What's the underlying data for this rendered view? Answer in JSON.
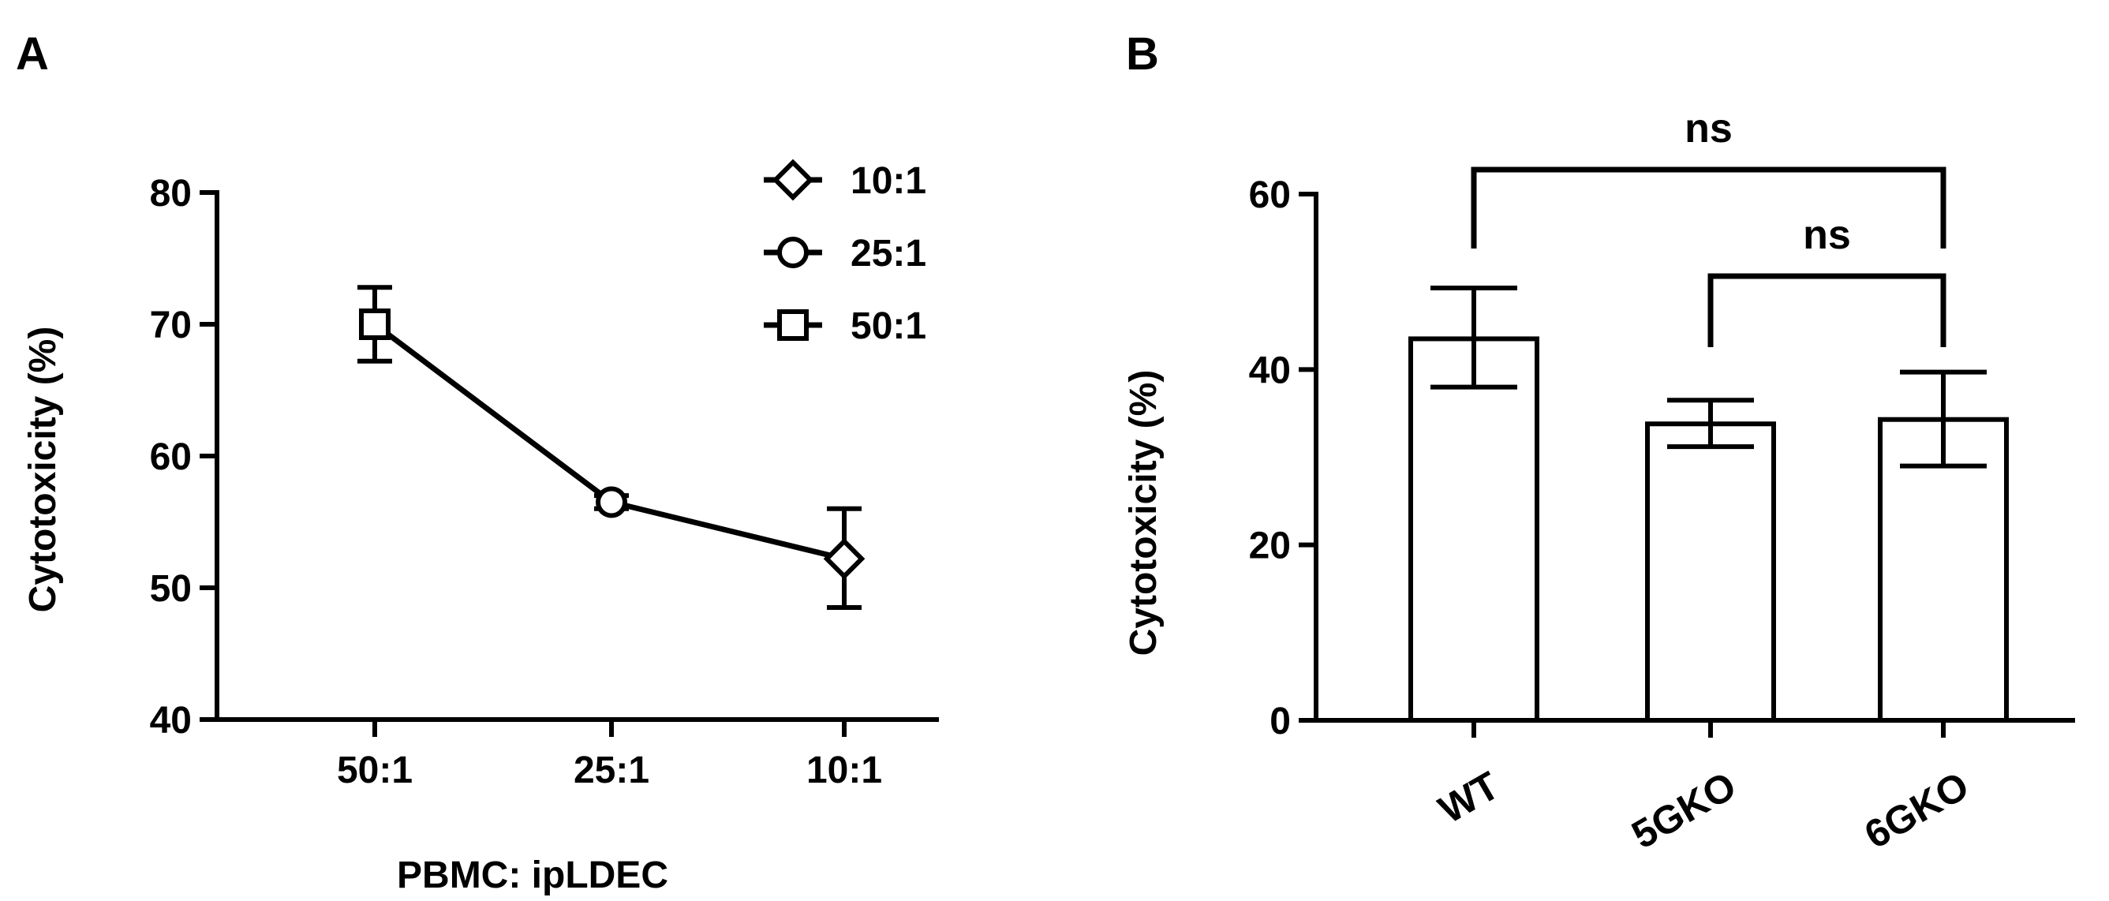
{
  "chart_data": [
    {
      "panel_label": "A",
      "type": "line",
      "xlabel": "PBMC: ipLDEC",
      "ylabel": "Cytotoxicity (%)",
      "categories": [
        "50:1",
        "25:1",
        "10:1"
      ],
      "yticks": [
        40,
        50,
        60,
        70,
        80
      ],
      "ylim": [
        40,
        80
      ],
      "points": [
        {
          "x": "50:1",
          "y": 70.0,
          "err_low": 67.2,
          "err_high": 72.8,
          "marker": "square"
        },
        {
          "x": "25:1",
          "y": 56.5,
          "err_low": 56.0,
          "err_high": 57.0,
          "marker": "circle"
        },
        {
          "x": "10:1",
          "y": 52.2,
          "err_low": 48.5,
          "err_high": 56.0,
          "marker": "diamond"
        }
      ],
      "legend": [
        {
          "label": "10:1",
          "marker": "diamond"
        },
        {
          "label": "25:1",
          "marker": "circle"
        },
        {
          "label": "50:1",
          "marker": "square"
        }
      ],
      "legend_position": "top-right",
      "color": "#000000"
    },
    {
      "panel_label": "B",
      "type": "bar",
      "ylabel": "Cytotoxicity (%)",
      "categories": [
        "WT",
        "5GKO",
        "6GKO"
      ],
      "values": [
        43.5,
        33.8,
        34.3
      ],
      "err_low": [
        38.0,
        31.2,
        29.0
      ],
      "err_high": [
        49.3,
        36.5,
        39.7
      ],
      "yticks": [
        0,
        20,
        40,
        60
      ],
      "ylim": [
        0,
        60
      ],
      "significance": [
        {
          "from": "WT",
          "to": "6GKO",
          "label": "ns"
        },
        {
          "from": "5GKO",
          "to": "6GKO",
          "label": "ns"
        }
      ],
      "color": "#000000"
    }
  ]
}
